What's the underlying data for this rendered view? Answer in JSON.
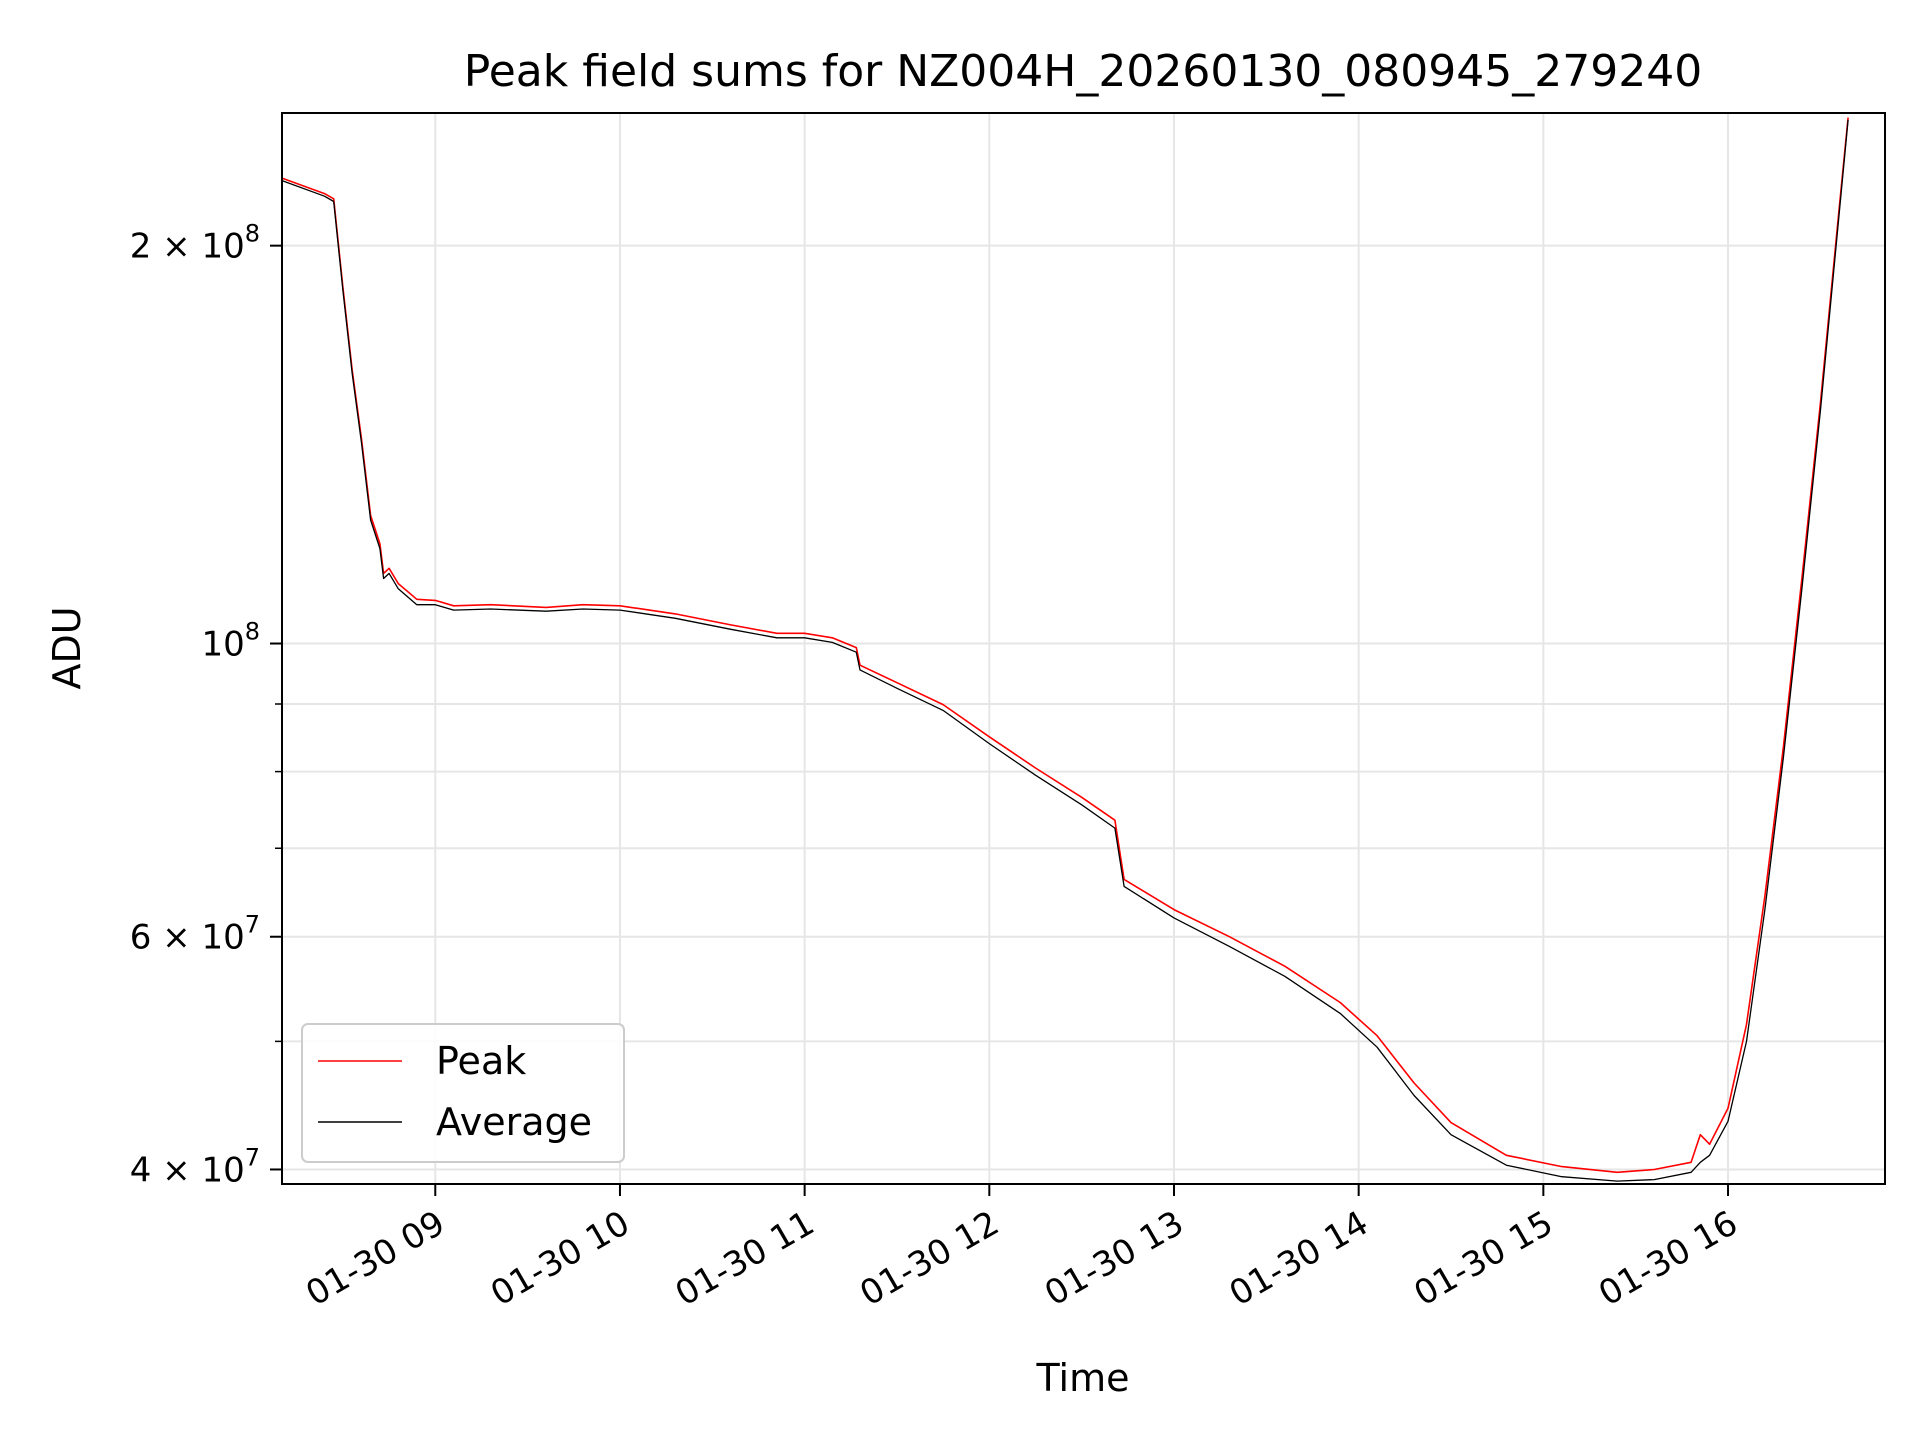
{
  "chart_data": {
    "type": "line",
    "title": "Peak field sums for NZ004H_20260130_080945_279240",
    "xlabel": "Time",
    "ylabel": "ADU",
    "yscale": "log",
    "xlim": [
      8.17,
      16.85
    ],
    "ylim": [
      39000000,
      252000000
    ],
    "grid": true,
    "legend": {
      "position": "lower-left",
      "entries": [
        "Peak",
        "Average"
      ]
    },
    "xticks": [
      {
        "value": 9,
        "label": "01-30 09"
      },
      {
        "value": 10,
        "label": "01-30 10"
      },
      {
        "value": 11,
        "label": "01-30 11"
      },
      {
        "value": 12,
        "label": "01-30 12"
      },
      {
        "value": 13,
        "label": "01-30 13"
      },
      {
        "value": 14,
        "label": "01-30 14"
      },
      {
        "value": 15,
        "label": "01-30 15"
      },
      {
        "value": 16,
        "label": "01-30 16"
      }
    ],
    "yticks": [
      {
        "value": 40000000,
        "label_base": "4 × 10",
        "label_exp": "7"
      },
      {
        "value": 60000000,
        "label_base": "6 × 10",
        "label_exp": "7"
      },
      {
        "value": 100000000,
        "label_base": "10",
        "label_exp": "8"
      },
      {
        "value": 200000000,
        "label_base": "2 × 10",
        "label_exp": "8"
      }
    ],
    "minor_yticks": [
      50000000,
      70000000,
      80000000,
      90000000
    ],
    "series": [
      {
        "name": "Average",
        "color": "#000000",
        "points": [
          [
            8.17,
            224000000
          ],
          [
            8.4,
            218000000
          ],
          [
            8.45,
            216000000
          ],
          [
            8.5,
            185000000
          ],
          [
            8.55,
            160000000
          ],
          [
            8.6,
            142000000
          ],
          [
            8.65,
            124000000
          ],
          [
            8.7,
            118000000
          ],
          [
            8.72,
            112000000
          ],
          [
            8.75,
            113000000
          ],
          [
            8.8,
            110000000
          ],
          [
            8.9,
            107000000
          ],
          [
            9.0,
            107000000
          ],
          [
            9.1,
            106000000
          ],
          [
            9.3,
            106200000
          ],
          [
            9.6,
            105800000
          ],
          [
            9.8,
            106200000
          ],
          [
            10.0,
            106000000
          ],
          [
            10.3,
            104500000
          ],
          [
            10.6,
            102500000
          ],
          [
            10.85,
            101000000
          ],
          [
            11.0,
            101000000
          ],
          [
            11.15,
            100200000
          ],
          [
            11.28,
            98500000
          ],
          [
            11.3,
            95500000
          ],
          [
            11.5,
            92500000
          ],
          [
            11.75,
            89000000
          ],
          [
            12.0,
            84000000
          ],
          [
            12.25,
            79500000
          ],
          [
            12.5,
            75500000
          ],
          [
            12.68,
            72500000
          ],
          [
            12.73,
            65500000
          ],
          [
            13.0,
            62000000
          ],
          [
            13.3,
            59000000
          ],
          [
            13.6,
            56000000
          ],
          [
            13.9,
            52500000
          ],
          [
            14.1,
            49500000
          ],
          [
            14.3,
            45500000
          ],
          [
            14.5,
            42500000
          ],
          [
            14.8,
            40300000
          ],
          [
            15.1,
            39500000
          ],
          [
            15.4,
            39200000
          ],
          [
            15.6,
            39300000
          ],
          [
            15.8,
            39800000
          ],
          [
            15.85,
            40500000
          ],
          [
            15.9,
            41000000
          ],
          [
            16.0,
            43500000
          ],
          [
            16.1,
            50000000
          ],
          [
            16.2,
            63000000
          ],
          [
            16.3,
            82000000
          ],
          [
            16.4,
            110000000
          ],
          [
            16.5,
            150000000
          ],
          [
            16.6,
            210000000
          ],
          [
            16.65,
            249000000
          ]
        ]
      },
      {
        "name": "Peak",
        "color": "#ff0000",
        "points": [
          [
            8.17,
            225000000
          ],
          [
            8.4,
            219000000
          ],
          [
            8.45,
            217000000
          ],
          [
            8.5,
            186000000
          ],
          [
            8.55,
            161000000
          ],
          [
            8.6,
            143000000
          ],
          [
            8.65,
            125000000
          ],
          [
            8.7,
            119000000
          ],
          [
            8.72,
            113000000
          ],
          [
            8.75,
            114000000
          ],
          [
            8.8,
            111000000
          ],
          [
            8.9,
            108000000
          ],
          [
            9.0,
            107800000
          ],
          [
            9.1,
            106800000
          ],
          [
            9.3,
            107000000
          ],
          [
            9.6,
            106500000
          ],
          [
            9.8,
            107000000
          ],
          [
            10.0,
            106800000
          ],
          [
            10.3,
            105300000
          ],
          [
            10.6,
            103300000
          ],
          [
            10.85,
            101800000
          ],
          [
            11.0,
            101800000
          ],
          [
            11.15,
            101000000
          ],
          [
            11.28,
            99300000
          ],
          [
            11.3,
            96300000
          ],
          [
            11.5,
            93400000
          ],
          [
            11.75,
            89900000
          ],
          [
            12.0,
            85000000
          ],
          [
            12.25,
            80500000
          ],
          [
            12.5,
            76500000
          ],
          [
            12.68,
            73500000
          ],
          [
            12.73,
            66300000
          ],
          [
            13.0,
            62900000
          ],
          [
            13.3,
            60000000
          ],
          [
            13.6,
            57000000
          ],
          [
            13.9,
            53500000
          ],
          [
            14.1,
            50500000
          ],
          [
            14.3,
            46500000
          ],
          [
            14.5,
            43400000
          ],
          [
            14.8,
            41000000
          ],
          [
            15.1,
            40200000
          ],
          [
            15.4,
            39800000
          ],
          [
            15.6,
            40000000
          ],
          [
            15.8,
            40500000
          ],
          [
            15.85,
            42500000
          ],
          [
            15.9,
            41800000
          ],
          [
            16.0,
            44500000
          ],
          [
            16.1,
            51500000
          ],
          [
            16.2,
            64500000
          ],
          [
            16.3,
            83500000
          ],
          [
            16.4,
            112000000
          ],
          [
            16.5,
            152000000
          ],
          [
            16.6,
            212000000
          ],
          [
            16.65,
            250000000
          ]
        ]
      }
    ]
  }
}
